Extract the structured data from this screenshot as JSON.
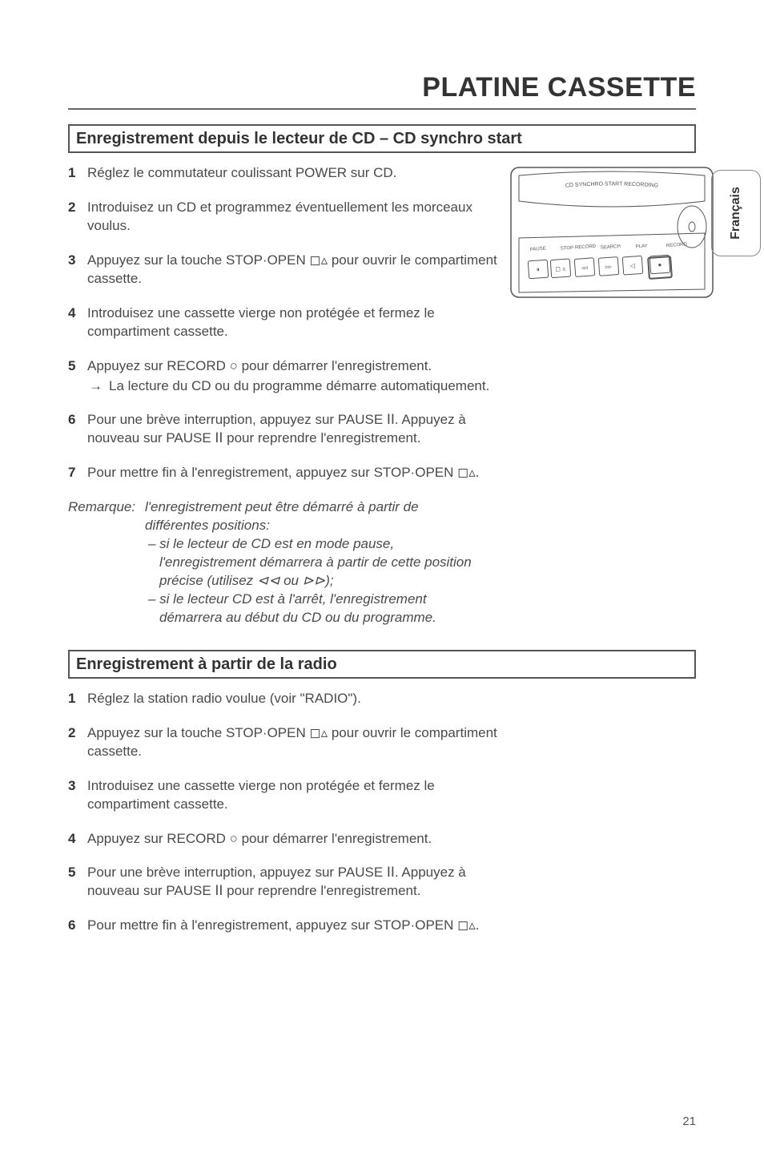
{
  "chapter_title": "PLATINE CASSETTE",
  "side_tab": "Français",
  "page_number": "21",
  "section_a": {
    "heading": "Enregistrement depuis le lecteur de CD – CD synchro start",
    "steps": [
      {
        "n": "1",
        "text": "Réglez le commutateur coulissant POWER sur CD."
      },
      {
        "n": "2",
        "text": "Introduisez un CD et programmez éventuellement les morceaux voulus."
      },
      {
        "n": "3",
        "text": "Appuyez sur la touche STOP·OPEN ◻▵ pour ouvrir le compartiment cassette."
      },
      {
        "n": "4",
        "text": "Introduisez une cassette vierge non protégée et fermez le compartiment cassette."
      },
      {
        "n": "5",
        "text": "Appuyez sur RECORD ○ pour démarrer l'enregistrement.",
        "sub": "La lecture du CD ou du programme démarre automatiquement."
      },
      {
        "n": "6",
        "text": "Pour une brève interruption, appuyez sur PAUSE ⅠⅠ. Appuyez à nouveau sur PAUSE ⅠⅠ pour reprendre l'enregistrement."
      },
      {
        "n": "7",
        "text": "Pour mettre fin à l'enregistrement, appuyez sur STOP·OPEN ◻▵."
      }
    ],
    "remark_label": "Remarque:",
    "remark_l1": "l'enregistrement peut être démarré à partir de",
    "remark_l2": "différentes positions:",
    "remark_b1a": "– si le lecteur de CD est en mode pause,",
    "remark_b1b": "l'enregistrement démarrera à partir de cette position",
    "remark_b1c": "précise (utilisez ⊲⊲ ou ⊳⊳);",
    "remark_b2a": "– si le lecteur CD est à l'arrêt, l'enregistrement",
    "remark_b2b": "démarrera au début du CD ou du programme."
  },
  "section_b": {
    "heading": "Enregistrement à partir de la radio",
    "steps": [
      {
        "n": "1",
        "text": "Réglez la station radio voulue (voir \"RADIO\")."
      },
      {
        "n": "2",
        "text": "Appuyez sur la touche STOP·OPEN ◻▵ pour ouvrir le compartiment cassette."
      },
      {
        "n": "3",
        "text": "Introduisez une cassette vierge non protégée et fermez le compartiment cassette."
      },
      {
        "n": "4",
        "text": "Appuyez sur RECORD ○ pour démarrer l'enregistrement."
      },
      {
        "n": "5",
        "text": "Pour une brève interruption, appuyez sur PAUSE ⅠⅠ. Appuyez à nouveau sur PAUSE ⅠⅠ pour reprendre l'enregistrement."
      },
      {
        "n": "6",
        "text": "Pour mettre fin à l'enregistrement, appuyez sur STOP·OPEN ◻▵."
      }
    ]
  },
  "diagram": {
    "top_label": "CD SYNCHRO START RECORDING",
    "keys": [
      "PAUSE",
      "STOP·RECORD",
      "SEARCH",
      "PLAY",
      "RECORD"
    ],
    "icons": [
      "⏸",
      "◻ ▵",
      "◃◃",
      "▹▹",
      "◁",
      "●"
    ],
    "stroke": "#555555",
    "fill": "#ffffff",
    "text_color": "#555555",
    "label_fontsize": 7,
    "icon_fontsize": 8
  }
}
